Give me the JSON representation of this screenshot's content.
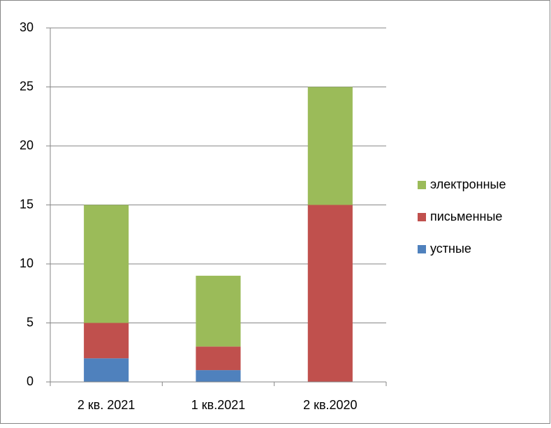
{
  "chart_data": {
    "type": "stacked_bar",
    "categories": [
      "2 кв. 2021",
      "1 кв.2021",
      "2 кв.2020"
    ],
    "series": [
      {
        "name": "устные",
        "color": "#4f81bd",
        "values": [
          2,
          1,
          0
        ]
      },
      {
        "name": "письменные",
        "color": "#c0504d",
        "values": [
          3,
          2,
          15
        ]
      },
      {
        "name": "электронные",
        "color": "#9bbb59",
        "values": [
          10,
          6,
          10
        ]
      }
    ],
    "ylim": [
      0,
      30
    ],
    "yticks": [
      0,
      5,
      10,
      15,
      20,
      25,
      30
    ],
    "grid": true,
    "legend": "right"
  }
}
